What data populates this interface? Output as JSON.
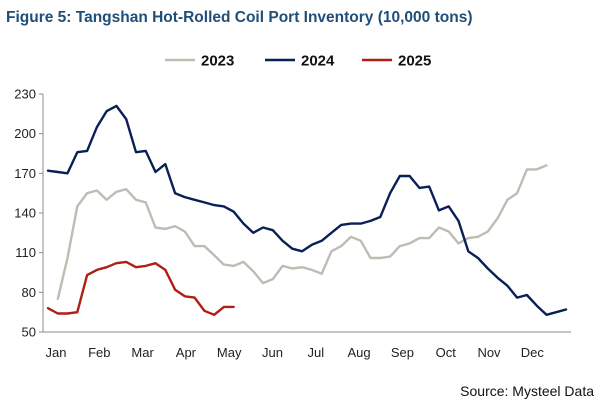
{
  "chart_data": {
    "type": "line",
    "title": "Figure 5: Tangshan Hot-Rolled Coil Port Inventory (10,000 tons)",
    "source": "Source: Mysteel Data",
    "x_labels": [
      "Jan",
      "Feb",
      "Mar",
      "Apr",
      "May",
      "Jun",
      "Jul",
      "Aug",
      "Sep",
      "Oct",
      "Nov",
      "Dec"
    ],
    "y_ticks": [
      50,
      80,
      110,
      140,
      170,
      200,
      230
    ],
    "ylim": [
      50,
      230
    ],
    "grid": false,
    "legend_position": "top",
    "series": [
      {
        "name": "2023",
        "color": "#bdbdb3",
        "values": [
          null,
          75,
          106,
          145,
          155,
          157,
          150,
          156,
          158,
          150,
          148,
          129,
          128,
          130,
          126,
          115,
          115,
          108,
          101,
          100,
          103,
          96,
          87,
          90,
          100,
          98,
          99,
          97,
          94,
          111,
          115,
          122,
          119,
          106,
          106,
          107,
          115,
          117,
          121,
          121,
          129,
          126,
          117,
          121,
          122,
          126,
          136,
          150,
          155,
          173,
          173,
          176
        ]
      },
      {
        "name": "2024",
        "color": "#0b1f57",
        "values": [
          172,
          171,
          170,
          186,
          187,
          205,
          217,
          221,
          211,
          186,
          187,
          171,
          177,
          155,
          152,
          150,
          148,
          146,
          145,
          141,
          132,
          125,
          129,
          127,
          119,
          113,
          111,
          116,
          119,
          125,
          131,
          132,
          132,
          134,
          137,
          155,
          168,
          168,
          159,
          160,
          142,
          145,
          134,
          111,
          106,
          98,
          91,
          85,
          76,
          78,
          70,
          63,
          65,
          67
        ]
      },
      {
        "name": "2025",
        "color": "#b01e14",
        "values": [
          68,
          64,
          64,
          65,
          93,
          97,
          99,
          102,
          103,
          99,
          100,
          102,
          97,
          82,
          77,
          76,
          66,
          63,
          69,
          69
        ]
      }
    ]
  }
}
